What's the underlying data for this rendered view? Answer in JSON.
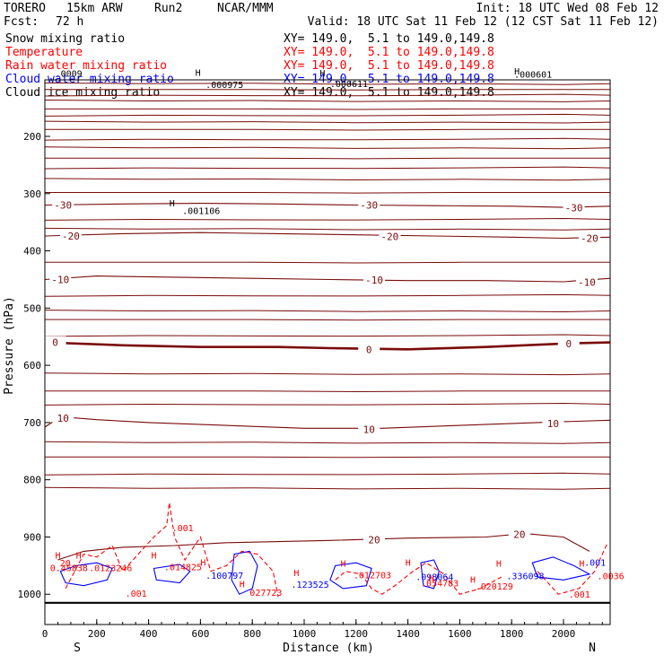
{
  "header": {
    "model": "TORERO",
    "config": "15km ARW",
    "run": "Run2",
    "org": "NCAR/MMM",
    "init": "Init: 18 UTC Wed 08 Feb 12",
    "fcst_label": "Fcst:",
    "fcst_value": "72 h",
    "valid": "Valid: 18 UTC Sat 11 Feb 12 (12 CST Sat 11 Feb 12)"
  },
  "legend": [
    {
      "label": "Snow mixing ratio",
      "xy": "XY= 149.0,  5.1 to 149.0,149.8",
      "color": "#000000"
    },
    {
      "label": "Temperature",
      "xy": "XY= 149.0,  5.1 to 149.0,149.8",
      "color": "#ff0000"
    },
    {
      "label": "Rain water mixing ratio",
      "xy": "XY= 149.0,  5.1 to 149.0,149.8",
      "color": "#ff0000"
    },
    {
      "label": "Cloud water mixing ratio",
      "xy": "XY= 149.0,  5.1 to 149.0,149.8",
      "color": "#0000ff"
    },
    {
      "label": "Cloud ice mixing ratio",
      "xy": "XY= 149.0,  5.1 to 149.0,149.8",
      "color": "#000000"
    }
  ],
  "colors": {
    "temperature": "#7a0a0a",
    "temperature_zero": "#7a0a0a",
    "rain": "#ff0000",
    "cloud_water": "#0000ff",
    "ice": "#000000",
    "frame": "#000000"
  },
  "chart_data": {
    "type": "cross-section",
    "xlabel": "Distance (km)",
    "ylabel": "Pressure (hPa)",
    "xlim": [
      0,
      2180
    ],
    "ylim": [
      1030,
      90
    ],
    "x_ticks": [
      0,
      200,
      400,
      600,
      800,
      1000,
      1200,
      1400,
      1600,
      1800,
      2000
    ],
    "y_ticks": [
      200,
      300,
      400,
      500,
      600,
      700,
      800,
      900,
      1000
    ],
    "x_end_labels": {
      "left": "S",
      "right": "N"
    },
    "temperature_contours": [
      {
        "level": -30,
        "points": [
          [
            0,
            320
          ],
          [
            300,
            318
          ],
          [
            600,
            317
          ],
          [
            900,
            318
          ],
          [
            1200,
            320
          ],
          [
            1500,
            321
          ],
          [
            1800,
            322
          ],
          [
            2000,
            324
          ],
          [
            2180,
            322
          ]
        ],
        "labels": [
          {
            "text": "-30",
            "x": 70,
            "p": 320
          },
          {
            "text": "-30",
            "x": 1250,
            "p": 320
          },
          {
            "text": "-30",
            "x": 2040,
            "p": 325
          }
        ]
      },
      {
        "level": -20,
        "points": [
          [
            0,
            374
          ],
          [
            300,
            370
          ],
          [
            600,
            368
          ],
          [
            900,
            370
          ],
          [
            1200,
            372
          ],
          [
            1500,
            374
          ],
          [
            1800,
            376
          ],
          [
            2000,
            378
          ],
          [
            2180,
            376
          ]
        ],
        "labels": [
          {
            "text": "-20",
            "x": 100,
            "p": 374
          },
          {
            "text": "-20",
            "x": 1330,
            "p": 375
          },
          {
            "text": "-20",
            "x": 2100,
            "p": 378
          }
        ]
      },
      {
        "level": -10,
        "points": [
          [
            0,
            450
          ],
          [
            200,
            444
          ],
          [
            500,
            446
          ],
          [
            800,
            448
          ],
          [
            1100,
            450
          ],
          [
            1400,
            452
          ],
          [
            1700,
            452
          ],
          [
            2000,
            454
          ],
          [
            2180,
            448
          ]
        ],
        "labels": [
          {
            "text": "-10",
            "x": 60,
            "p": 450
          },
          {
            "text": "-10",
            "x": 1270,
            "p": 451
          },
          {
            "text": "-10",
            "x": 2090,
            "p": 455
          }
        ]
      },
      {
        "level": 0,
        "points": [
          [
            0,
            560
          ],
          [
            300,
            565
          ],
          [
            600,
            568
          ],
          [
            900,
            568
          ],
          [
            1100,
            570
          ],
          [
            1400,
            572
          ],
          [
            1700,
            568
          ],
          [
            2000,
            562
          ],
          [
            2180,
            560
          ]
        ],
        "labels": [
          {
            "text": "0",
            "x": 40,
            "p": 560
          },
          {
            "text": "0",
            "x": 1250,
            "p": 572
          },
          {
            "text": "0",
            "x": 2020,
            "p": 562
          }
        ]
      },
      {
        "level": 10,
        "points": [
          [
            0,
            708
          ],
          [
            60,
            690
          ],
          [
            200,
            695
          ],
          [
            400,
            700
          ],
          [
            700,
            705
          ],
          [
            1000,
            710
          ],
          [
            1300,
            710
          ],
          [
            1600,
            705
          ],
          [
            1900,
            700
          ],
          [
            2180,
            696
          ]
        ],
        "labels": [
          {
            "text": "10",
            "x": 70,
            "p": 692
          },
          {
            "text": "10",
            "x": 1250,
            "p": 712
          },
          {
            "text": "10",
            "x": 1960,
            "p": 702
          }
        ]
      },
      {
        "level": 20,
        "points": [
          [
            50,
            940
          ],
          [
            150,
            925
          ],
          [
            300,
            918
          ],
          [
            500,
            915
          ],
          [
            700,
            910
          ],
          [
            900,
            908
          ],
          [
            1100,
            906
          ],
          [
            1400,
            902
          ],
          [
            1700,
            900
          ],
          [
            1850,
            894
          ],
          [
            2000,
            900
          ],
          [
            2100,
            925
          ]
        ],
        "labels": [
          {
            "text": "20",
            "x": 1270,
            "p": 905
          },
          {
            "text": "20",
            "x": 1830,
            "p": 895
          }
        ]
      }
    ],
    "unlabeled_temperature_levels_hpa": [
      108,
      118,
      128,
      138,
      152,
      163,
      175,
      188,
      205,
      220,
      238,
      255,
      275,
      298,
      345,
      362,
      420,
      478,
      505,
      520,
      548,
      615,
      645,
      668,
      735,
      760,
      790,
      815
    ],
    "rain_labels": [
      {
        "text": ".001",
        "x": 490,
        "p": 890
      },
      {
        "text": "0.45838",
        "x": 20,
        "p": 960
      },
      {
        "text": ".0123246",
        "x": 170,
        "p": 960
      },
      {
        "text": ".014825",
        "x": 460,
        "p": 958
      },
      {
        "text": "027723",
        "x": 790,
        "p": 1003
      },
      {
        "text": ".012703",
        "x": 1190,
        "p": 972
      },
      {
        "text": ".054783",
        "x": 1450,
        "p": 986
      },
      {
        "text": ".020129",
        "x": 1660,
        "p": 992
      },
      {
        "text": ".001",
        "x": 2020,
        "p": 1006
      },
      {
        "text": ".0036",
        "x": 2130,
        "p": 974
      },
      {
        "text": "20",
        "x": 58,
        "p": 951
      },
      {
        "text": ".001",
        "x": 310,
        "p": 1004
      }
    ],
    "cloud_water_labels": [
      {
        "text": ".100797",
        "x": 620,
        "p": 973
      },
      {
        "text": ".123525",
        "x": 950,
        "p": 989
      },
      {
        "text": ".098064",
        "x": 1430,
        "p": 975
      },
      {
        "text": ".336098",
        "x": 1780,
        "p": 974
      },
      {
        "text": ".001",
        "x": 2080,
        "p": 950
      }
    ],
    "ice_labels": [
      {
        "text": ".000975",
        "x": 620,
        "p": 115
      },
      {
        "text": ".000611",
        "x": 1100,
        "p": 114
      },
      {
        "text": ".001106",
        "x": 530,
        "p": 336
      },
      {
        "text": ".000601",
        "x": 1810,
        "p": 97
      },
      {
        "text": ".0009",
        "x": 40,
        "p": 96
      }
    ],
    "highs": [
      {
        "x": 580,
        "p": 94
      },
      {
        "x": 480,
        "p": 322
      },
      {
        "x": 1060,
        "p": 95
      },
      {
        "x": 1810,
        "p": 92
      },
      {
        "x": 40,
        "p": 938
      },
      {
        "x": 120,
        "p": 938
      },
      {
        "x": 410,
        "p": 938
      },
      {
        "x": 600,
        "p": 950
      },
      {
        "x": 750,
        "p": 988
      },
      {
        "x": 960,
        "p": 968
      },
      {
        "x": 1140,
        "p": 952
      },
      {
        "x": 1390,
        "p": 950
      },
      {
        "x": 1480,
        "p": 978
      },
      {
        "x": 1640,
        "p": 980
      },
      {
        "x": 1740,
        "p": 952
      },
      {
        "x": 2060,
        "p": 952
      }
    ]
  }
}
